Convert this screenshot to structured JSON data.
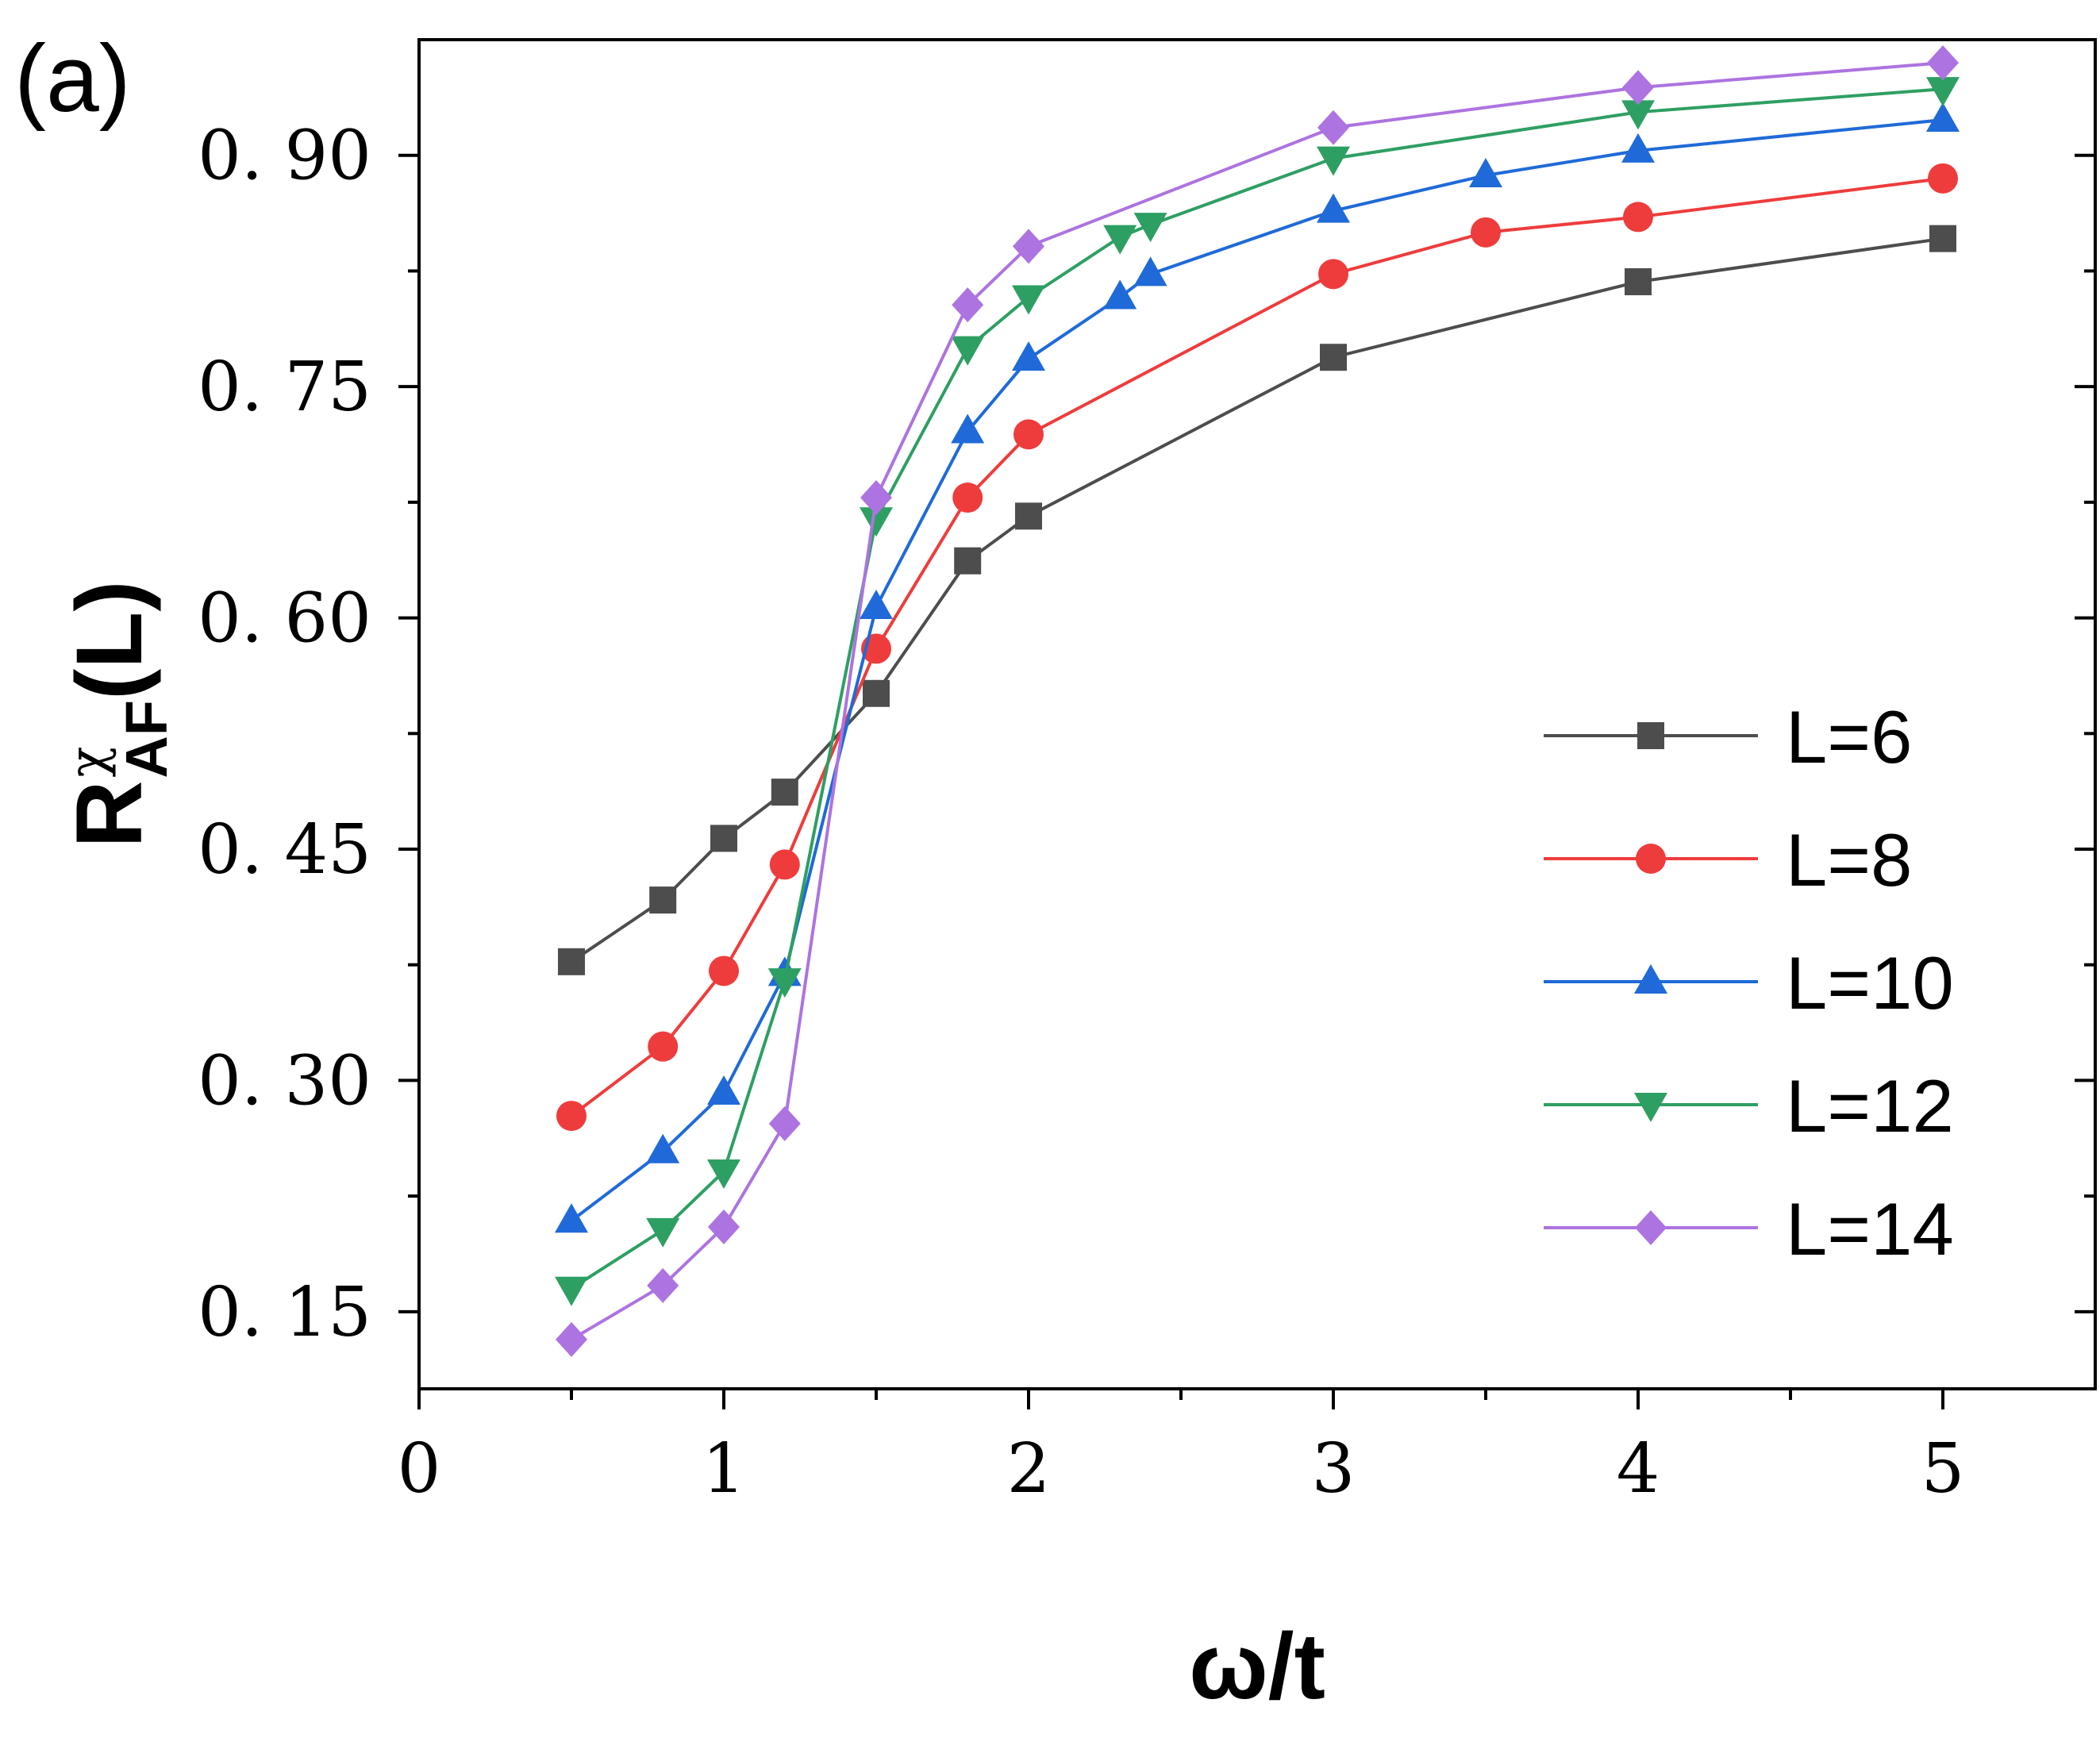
{
  "chart_data": {
    "type": "line",
    "panel_label": "(a)",
    "xlabel": "ω/t",
    "ylabel": {
      "base": "R",
      "superscript": "χ",
      "subscript": "AF",
      "suffix": "(L)"
    },
    "xlim": [
      0,
      5.5
    ],
    "ylim": [
      0.1,
      0.975
    ],
    "x_ticks": [
      0,
      1,
      2,
      3,
      4,
      5
    ],
    "x_tick_labels": [
      "0",
      "1",
      "2",
      "3",
      "4",
      "5"
    ],
    "y_ticks": [
      0.15,
      0.3,
      0.45,
      0.6,
      0.75,
      0.9
    ],
    "y_tick_labels": [
      "0. 15",
      "0. 30",
      "0. 45",
      "0. 60",
      "0. 75",
      "0. 90"
    ],
    "legend_position": "bottom-right",
    "series": [
      {
        "name": "L=6",
        "color": "#4d4d4d",
        "marker": "square",
        "x": [
          0.5,
          0.8,
          1.0,
          1.2,
          1.5,
          1.8,
          2.0,
          3.0,
          4.0,
          5.0
        ],
        "y": [
          0.377,
          0.417,
          0.457,
          0.487,
          0.551,
          0.637,
          0.666,
          0.769,
          0.818,
          0.846
        ]
      },
      {
        "name": "L=8",
        "color": "#ee3c3c",
        "marker": "circle",
        "x": [
          0.5,
          0.8,
          1.0,
          1.2,
          1.5,
          1.8,
          2.0,
          3.0,
          3.5,
          4.0,
          5.0
        ],
        "y": [
          0.277,
          0.322,
          0.371,
          0.44,
          0.58,
          0.678,
          0.719,
          0.823,
          0.85,
          0.86,
          0.885
        ]
      },
      {
        "name": "L=10",
        "color": "#1f6ad8",
        "marker": "triangle-up",
        "x": [
          0.5,
          0.8,
          1.0,
          1.2,
          1.5,
          1.8,
          2.0,
          2.3,
          2.4,
          3.0,
          3.5,
          4.0,
          5.0
        ],
        "y": [
          0.209,
          0.254,
          0.292,
          0.369,
          0.607,
          0.721,
          0.768,
          0.808,
          0.823,
          0.864,
          0.887,
          0.903,
          0.923
        ]
      },
      {
        "name": "L=12",
        "color": "#2e9f63",
        "marker": "triangle-down",
        "x": [
          0.5,
          0.8,
          1.0,
          1.2,
          1.5,
          1.8,
          2.0,
          2.3,
          2.4,
          3.0,
          4.0,
          5.0
        ],
        "y": [
          0.165,
          0.203,
          0.241,
          0.365,
          0.664,
          0.775,
          0.808,
          0.847,
          0.855,
          0.898,
          0.928,
          0.943
        ]
      },
      {
        "name": "L=14",
        "color": "#ad73e0",
        "marker": "diamond",
        "x": [
          0.5,
          0.8,
          1.0,
          1.2,
          1.5,
          1.8,
          2.0,
          3.0,
          4.0,
          5.0
        ],
        "y": [
          0.132,
          0.167,
          0.205,
          0.272,
          0.678,
          0.803,
          0.841,
          0.918,
          0.944,
          0.96
        ]
      }
    ]
  }
}
